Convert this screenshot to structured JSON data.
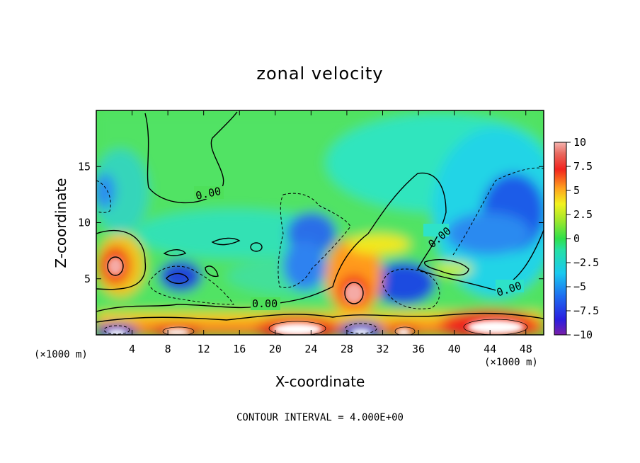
{
  "chart_data": {
    "type": "heatmap",
    "title": "zonal velocity",
    "xlabel": "X-coordinate",
    "ylabel": "Z-coordinate",
    "x_unit": "(×1000 m)",
    "x_unit_right": "(×1000 m)",
    "xlim": [
      0,
      50
    ],
    "ylim": [
      0,
      20
    ],
    "x_ticks": [
      4,
      8,
      12,
      16,
      20,
      24,
      28,
      32,
      36,
      40,
      44,
      48
    ],
    "y_ticks": [
      5,
      10,
      15
    ],
    "colorbar": {
      "min": -10,
      "max": 10,
      "ticks": [
        "10",
        "7.5",
        "5",
        "2.5",
        "0",
        "−2.5",
        "−5",
        "−7.5",
        "−10"
      ]
    },
    "contour_labels": [
      "0.00",
      "0.00",
      "0.00",
      "0.00"
    ],
    "footnote": "CONTOUR INTERVAL = 4.000E+00",
    "features": [
      {
        "x": 2,
        "z": 6.3,
        "value": 9
      },
      {
        "x": 9.5,
        "z": 5,
        "value": -7
      },
      {
        "x": 29,
        "z": 3.8,
        "value": 9
      },
      {
        "x": 30,
        "z": 7.5,
        "value": 3
      },
      {
        "x": 34,
        "z": 4.5,
        "value": -8
      },
      {
        "x": 47,
        "z": 11,
        "value": -7
      },
      {
        "x": 20,
        "z": 11,
        "value": -5
      },
      {
        "x": 12,
        "z": 15,
        "value": 0.5
      }
    ]
  }
}
